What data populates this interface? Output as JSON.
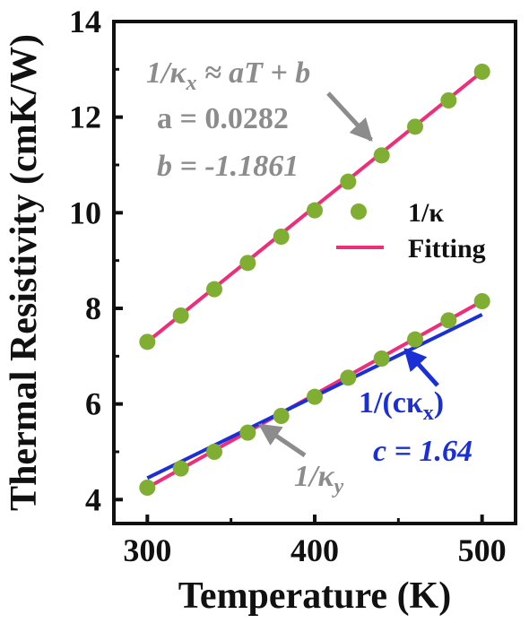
{
  "chart_data": {
    "type": "scatter",
    "xlabel": "Temperature (K)",
    "ylabel": "Thermal Resistivity (cmK/W)",
    "xlim": [
      280,
      520
    ],
    "ylim": [
      3.5,
      14
    ],
    "xticks": [
      "300",
      "400",
      "500"
    ],
    "yticks": [
      "4",
      "6",
      "8",
      "10",
      "12",
      "14"
    ],
    "grid": false,
    "legend": {
      "position": "right-middle",
      "items": [
        {
          "label": "1/κ",
          "marker": "circle",
          "color": "#7fae32"
        },
        {
          "label": "Fitting",
          "marker": "line",
          "color": "#ef2d7a"
        }
      ]
    },
    "series": [
      {
        "name": "1/κx",
        "color": "#7fae32",
        "x": [
          300,
          320,
          340,
          360,
          380,
          400,
          420,
          440,
          460,
          480,
          500
        ],
        "y": [
          7.3,
          7.85,
          8.4,
          8.95,
          9.5,
          10.05,
          10.65,
          11.2,
          11.8,
          12.35,
          12.95
        ]
      },
      {
        "name": "1/κy",
        "color": "#7fae32",
        "x": [
          300,
          320,
          340,
          360,
          380,
          400,
          420,
          440,
          460,
          480,
          500
        ],
        "y": [
          4.25,
          4.65,
          5.0,
          5.4,
          5.75,
          6.15,
          6.55,
          6.95,
          7.35,
          7.75,
          8.15
        ]
      }
    ],
    "fit_lines": [
      {
        "color": "#ef2d7a",
        "x": [
          300,
          500
        ],
        "y": [
          7.3,
          12.95
        ]
      },
      {
        "color": "#ef2d7a",
        "x": [
          300,
          500
        ],
        "y": [
          4.25,
          8.15
        ]
      },
      {
        "color": "#1a2fd6",
        "x": [
          300,
          500
        ],
        "y": [
          4.45,
          7.87
        ]
      }
    ],
    "annotations": {
      "fit_eq_lhs": "1/κ",
      "fit_eq_sub": "x",
      "fit_eq_rhs": " ≈ aT + b",
      "a_value": "a = 0.0282",
      "b_value": "b = -1.1861",
      "kx_scaled_prefix": "1/(cκ",
      "kx_scaled_sub": "x",
      "kx_scaled_suffix": ")",
      "c_value": "c = 1.64",
      "ky_lhs": "1/κ",
      "ky_sub": "y",
      "gray_color": "#8c8c8c",
      "blue_color": "#1a2fd6"
    }
  }
}
